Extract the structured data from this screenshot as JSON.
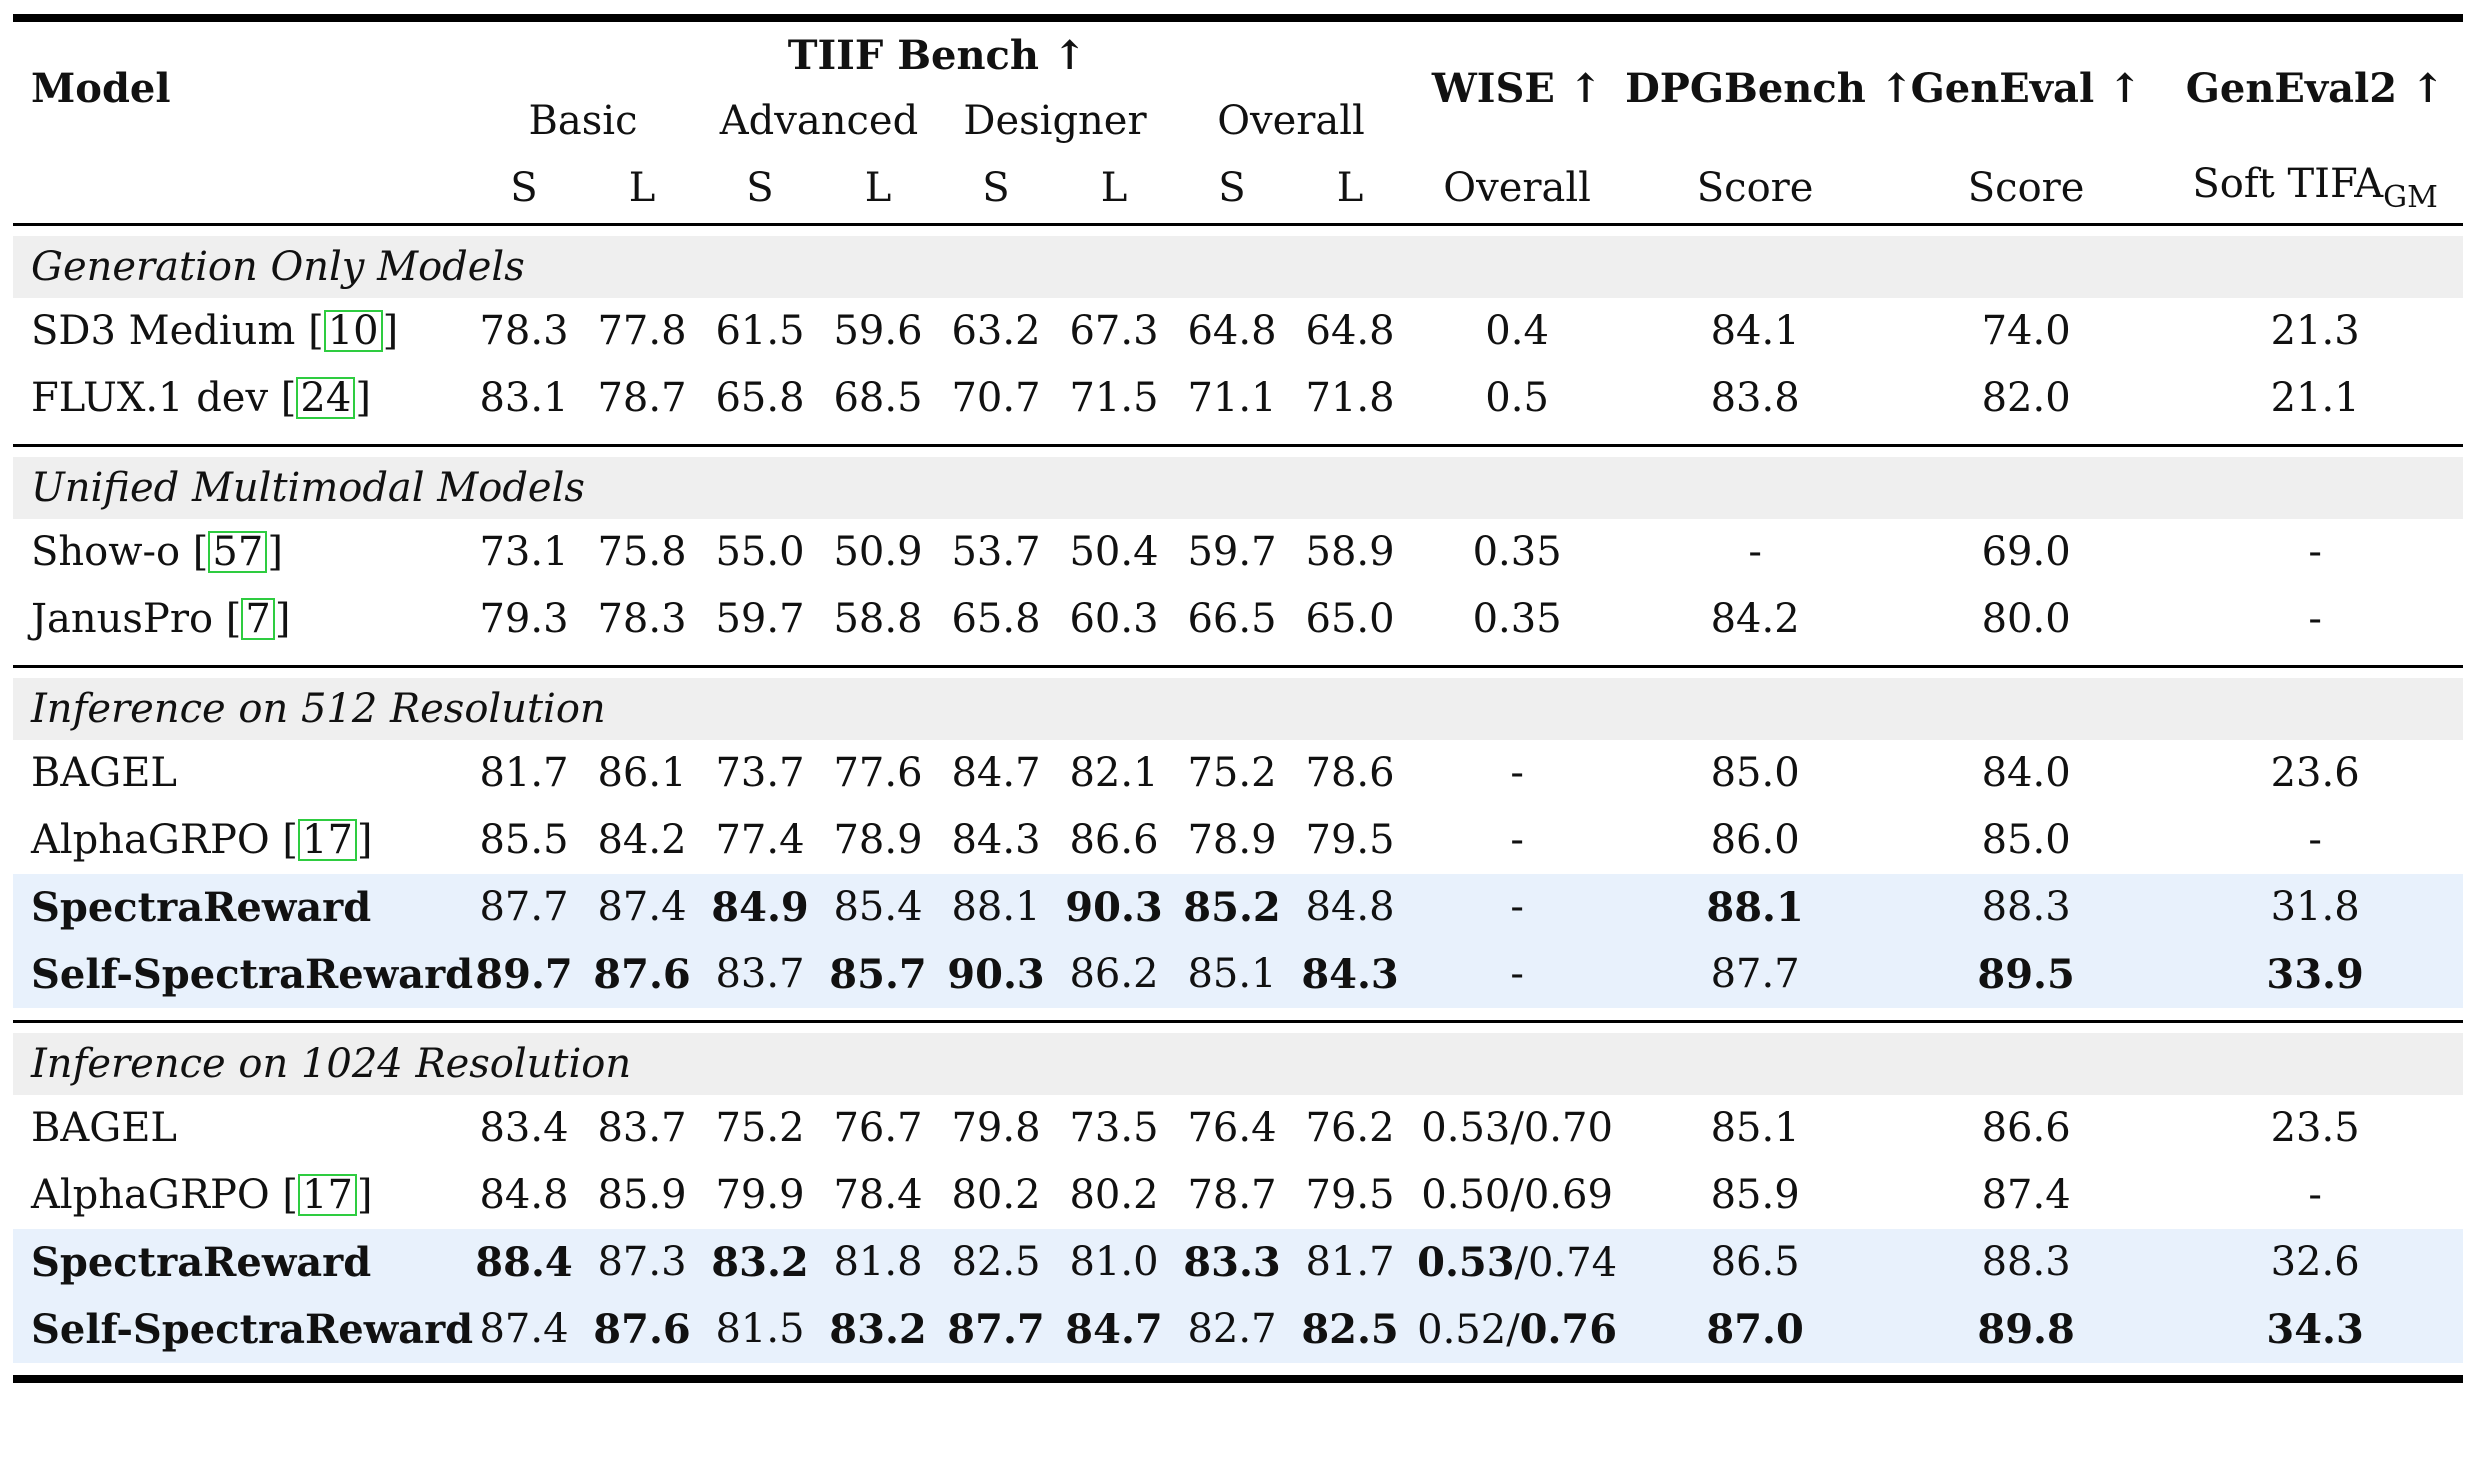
{
  "header": {
    "model": "Model",
    "tiif": "TIIF Bench ↑",
    "tiif_groups": [
      "Basic",
      "Advanced",
      "Designer",
      "Overall"
    ],
    "sl": [
      "S",
      "L"
    ],
    "wise": "WISE ↑",
    "wise_sub": "Overall",
    "dpg": "DPGBench ↑",
    "dpg_sub": "Score",
    "geneval": "GenEval ↑",
    "geneval_sub": "Score",
    "geneval2": "GenEval2 ↑",
    "geneval2_sub": "Soft TIFA",
    "geneval2_subscript": "GM"
  },
  "sections": [
    {
      "title": "Generation Only Models",
      "rows": [
        {
          "model": "SD3 Medium ",
          "ref": "10",
          "tiif": [
            "78.3",
            "77.8",
            "61.5",
            "59.6",
            "63.2",
            "67.3",
            "64.8",
            "64.8"
          ],
          "wise": "0.4",
          "dpg": "84.1",
          "geneval": "74.0",
          "geneval2": "21.3"
        },
        {
          "model": "FLUX.1 dev ",
          "ref": "24",
          "tiif": [
            "83.1",
            "78.7",
            "65.8",
            "68.5",
            "70.7",
            "71.5",
            "71.1",
            "71.8"
          ],
          "wise": "0.5",
          "dpg": "83.8",
          "geneval": "82.0",
          "geneval2": "21.1"
        }
      ]
    },
    {
      "title": "Unified Multimodal Models",
      "rows": [
        {
          "model": "Show-o ",
          "ref": "57",
          "tiif": [
            "73.1",
            "75.8",
            "55.0",
            "50.9",
            "53.7",
            "50.4",
            "59.7",
            "58.9"
          ],
          "wise": "0.35",
          "dpg": "-",
          "geneval": "69.0",
          "geneval2": "-"
        },
        {
          "model": "JanusPro ",
          "ref": "7",
          "tiif": [
            "79.3",
            "78.3",
            "59.7",
            "58.8",
            "65.8",
            "60.3",
            "66.5",
            "65.0"
          ],
          "wise": "0.35",
          "dpg": "84.2",
          "geneval": "80.0",
          "geneval2": "-"
        }
      ]
    },
    {
      "title": "Inference on 512 Resolution",
      "rows": [
        {
          "model": "BAGEL",
          "ref": "",
          "tiif": [
            "81.7",
            "86.1",
            "73.7",
            "77.6",
            "84.7",
            "82.1",
            "75.2",
            "78.6"
          ],
          "wise": "-",
          "dpg": "85.0",
          "geneval": "84.0",
          "geneval2": "23.6"
        },
        {
          "model": "AlphaGRPO ",
          "ref": "17",
          "tiif": [
            "85.5",
            "84.2",
            "77.4",
            "78.9",
            "84.3",
            "86.6",
            "78.9",
            "79.5"
          ],
          "wise": "-",
          "dpg": "86.0",
          "geneval": "85.0",
          "geneval2": "-"
        },
        {
          "model": "SpectraReward",
          "ref": "",
          "highlight": true,
          "model_bold": true,
          "tiif": [
            "87.7",
            "87.4",
            "84.9",
            "85.4",
            "88.1",
            "90.3",
            "85.2",
            "84.8"
          ],
          "tiif_bold": [
            false,
            false,
            true,
            false,
            false,
            true,
            true,
            false
          ],
          "wise": "-",
          "dpg": "88.1",
          "dpg_bold": true,
          "geneval": "88.3",
          "geneval2": "31.8"
        },
        {
          "model": "Self-SpectraReward",
          "ref": "",
          "highlight": true,
          "model_bold": true,
          "tiif": [
            "89.7",
            "87.6",
            "83.7",
            "85.7",
            "90.3",
            "86.2",
            "85.1",
            "84.3"
          ],
          "tiif_bold": [
            true,
            true,
            false,
            true,
            true,
            false,
            false,
            true
          ],
          "wise": "-",
          "dpg": "87.7",
          "geneval": "89.5",
          "geneval_bold": true,
          "geneval2": "33.9",
          "geneval2_bold": true
        }
      ]
    },
    {
      "title": "Inference on 1024 Resolution",
      "rows": [
        {
          "model": "BAGEL",
          "ref": "",
          "tiif": [
            "83.4",
            "83.7",
            "75.2",
            "76.7",
            "79.8",
            "73.5",
            "76.4",
            "76.2"
          ],
          "wise": "0.53/0.70",
          "dpg": "85.1",
          "geneval": "86.6",
          "geneval2": "23.5"
        },
        {
          "model": "AlphaGRPO ",
          "ref": "17",
          "tiif": [
            "84.8",
            "85.9",
            "79.9",
            "78.4",
            "80.2",
            "80.2",
            "78.7",
            "79.5"
          ],
          "wise": "0.50/0.69",
          "dpg": "85.9",
          "geneval": "87.4",
          "geneval2": "-"
        },
        {
          "model": "SpectraReward",
          "ref": "",
          "highlight": true,
          "model_bold": true,
          "tiif": [
            "88.4",
            "87.3",
            "83.2",
            "81.8",
            "82.5",
            "81.0",
            "83.3",
            "81.7"
          ],
          "tiif_bold": [
            true,
            false,
            true,
            false,
            false,
            false,
            true,
            false
          ],
          "wise_a": "0.53",
          "wise_a_bold": true,
          "wise_b": "/0.74",
          "dpg": "86.5",
          "geneval": "88.3",
          "geneval2": "32.6"
        },
        {
          "model": "Self-SpectraReward",
          "ref": "",
          "highlight": true,
          "model_bold": true,
          "tiif": [
            "87.4",
            "87.6",
            "81.5",
            "83.2",
            "87.7",
            "84.7",
            "82.7",
            "82.5"
          ],
          "tiif_bold": [
            false,
            true,
            false,
            true,
            true,
            true,
            false,
            true
          ],
          "wise_a": "0.52/",
          "wise_b": "0.76",
          "wise_b_bold": true,
          "dpg": "87.0",
          "dpg_bold": true,
          "geneval": "89.8",
          "geneval_bold": true,
          "geneval2": "34.3",
          "geneval2_bold": true
        }
      ]
    }
  ]
}
